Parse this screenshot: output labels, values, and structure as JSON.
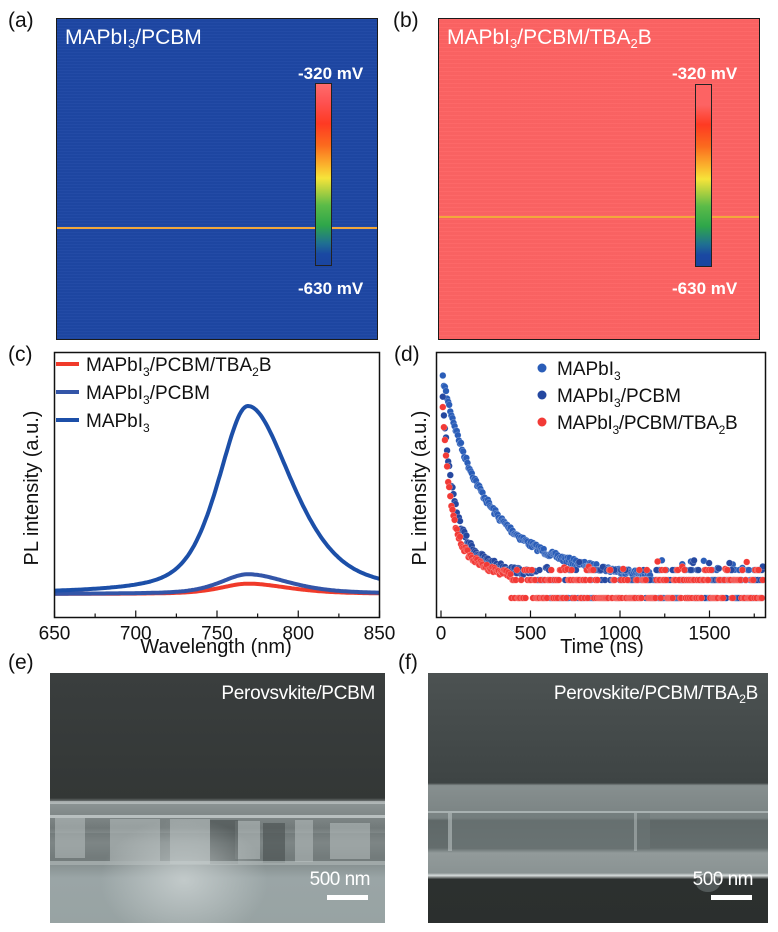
{
  "panel_labels": {
    "a": "(a)",
    "b": "(b)",
    "c": "(c)",
    "d": "(d)",
    "e": "(e)",
    "f": "(f)"
  },
  "kpfm": [
    {
      "title_parts": [
        "MAPbI",
        "3",
        "/PCBM"
      ],
      "colorbar_max": "-320 mV",
      "colorbar_min": "-630 mV",
      "surface_color": "#1e47a4",
      "linescan_color": "#f2a83b"
    },
    {
      "title_parts": [
        "MAPbI",
        "3",
        "/PCBM/TBA",
        "2",
        "B"
      ],
      "colorbar_max": "-320 mV",
      "colorbar_min": "-630 mV",
      "surface_color": "#fd6363",
      "linescan_color": "#f2a83b"
    }
  ],
  "sem": [
    {
      "title": "Perovsvkite/PCBM",
      "scale_label": "500 nm"
    },
    {
      "title_parts": [
        "Perovskite/PCBM/TBA",
        "2",
        "B"
      ],
      "scale_label": "500 nm"
    }
  ],
  "chart_data": [
    {
      "type": "line",
      "title": "",
      "xlabel": "Wavelength (nm)",
      "ylabel": "PL intensity (a.u.)",
      "xlim": [
        650,
        850
      ],
      "ylim": [
        0,
        1.1
      ],
      "x_ticks": [
        650,
        700,
        750,
        800,
        850
      ],
      "x_tick_labels": [
        "650",
        "700",
        "750",
        "800",
        "850"
      ],
      "y_ticks_shown": false,
      "legend_position": "top-left",
      "series": [
        {
          "name_parts": [
            "MAPbI",
            "3",
            "/PCBM/TBA",
            "2",
            "B"
          ],
          "color": "#f03a2a",
          "peak_nm": 769,
          "peak_value": 0.055,
          "fwhm_nm": 48
        },
        {
          "name_parts": [
            "MAPbI",
            "3",
            "/PCBM"
          ],
          "color": "#3355a8",
          "peak_nm": 769,
          "peak_value": 0.105,
          "fwhm_nm": 48
        },
        {
          "name_parts": [
            "MAPbI",
            "3"
          ],
          "color": "#1c4fa8",
          "peak_nm": 769,
          "peak_value": 1.0,
          "fwhm_nm": 52
        }
      ]
    },
    {
      "type": "scatter",
      "title": "",
      "xlabel": "Time (ns)",
      "ylabel": "PL intensity (a.u.)",
      "xlim": [
        -20,
        1815
      ],
      "ylim": [
        0,
        1.1
      ],
      "x_ticks": [
        0,
        500,
        1000,
        1500
      ],
      "x_tick_labels": [
        "0",
        "500",
        "1000",
        "1500"
      ],
      "y_ticks_shown": false,
      "legend_position": "top-right",
      "series": [
        {
          "name_parts": [
            "MAPbI",
            "3"
          ],
          "color": "#2a5db8",
          "tau_ns": 420,
          "amplitude": 1.0
        },
        {
          "name_parts": [
            "MAPbI",
            "3",
            "/PCBM"
          ],
          "color": "#2548a0",
          "tau_ns": 55,
          "amplitude": 1.0
        },
        {
          "name_parts": [
            "MAPbI",
            "3",
            "/PCBM/TBA",
            "2",
            "B"
          ],
          "color": "#f23a36",
          "tau_ns": 40,
          "amplitude": 1.0
        }
      ]
    }
  ]
}
